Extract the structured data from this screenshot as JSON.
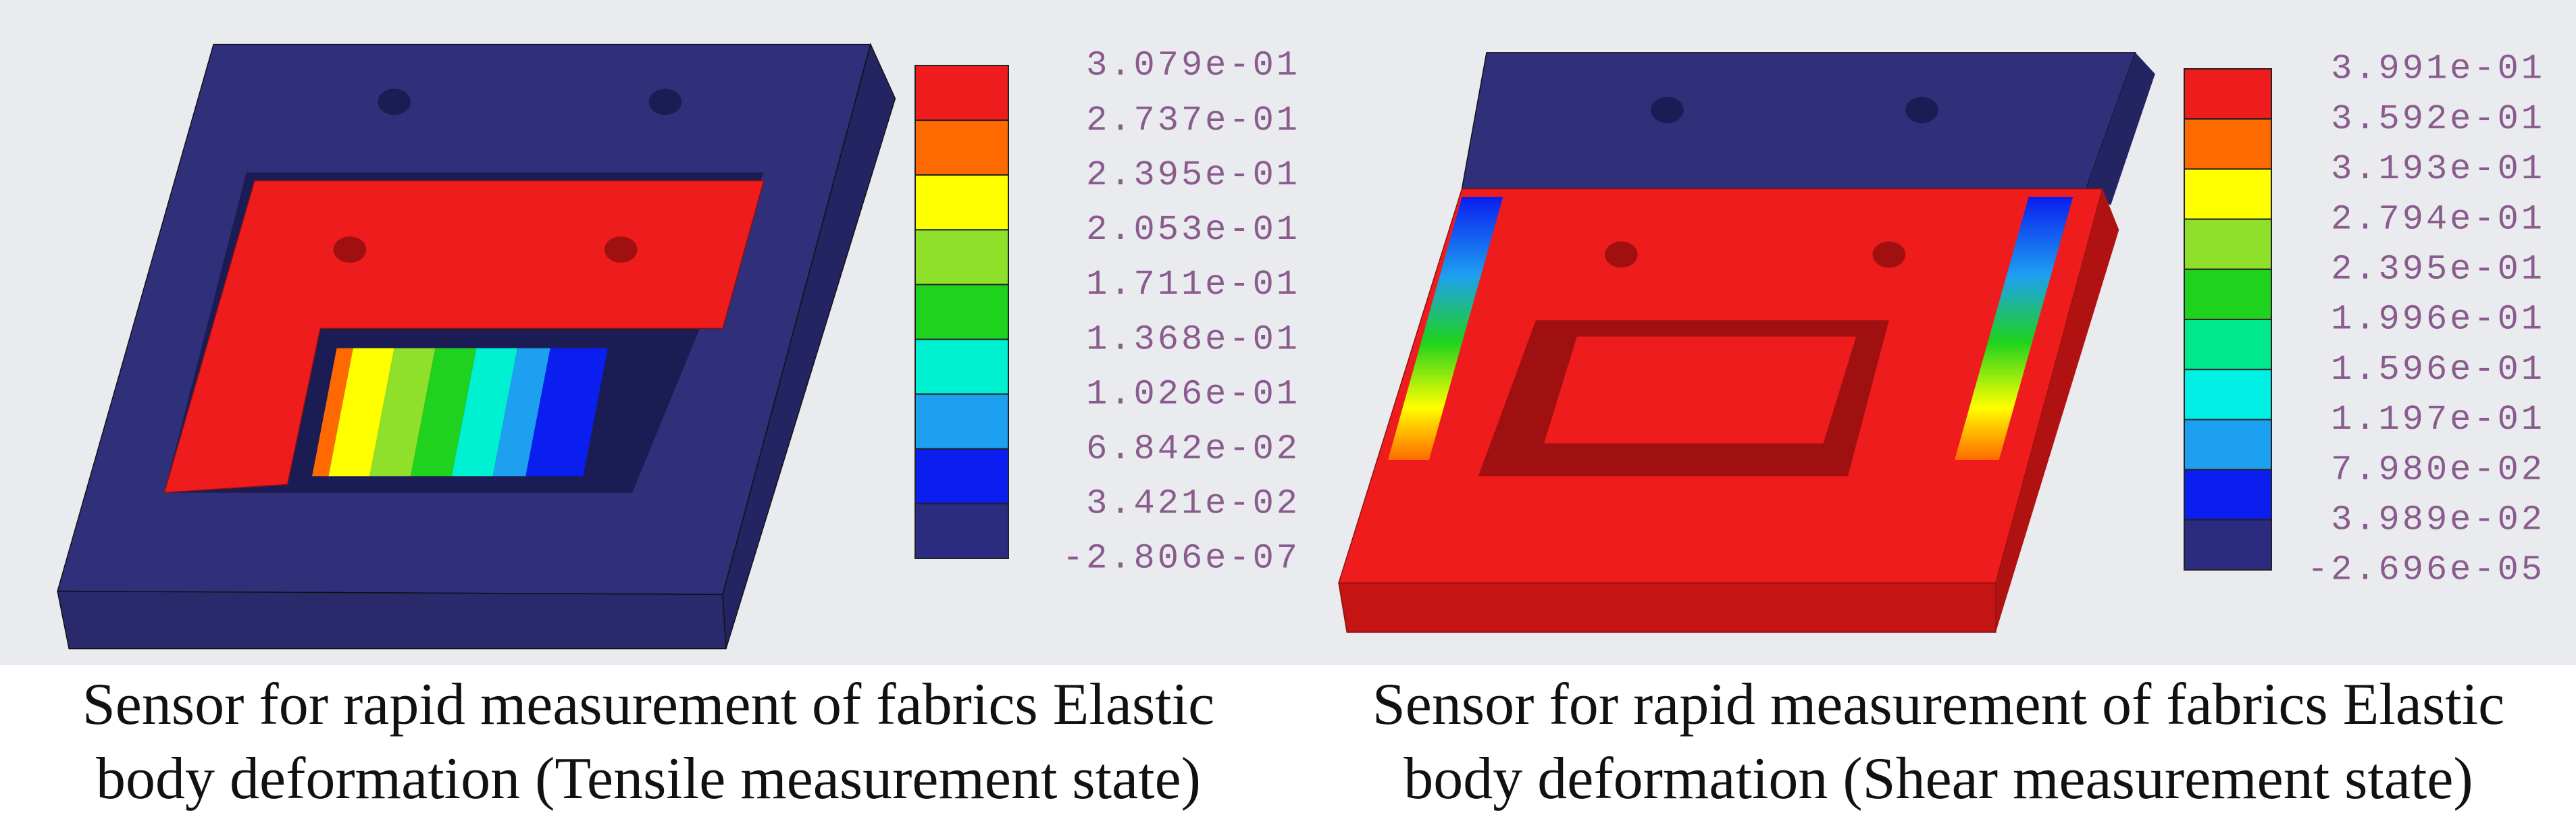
{
  "panels": [
    {
      "caption": [
        "Sensor for rapid measurement of fabrics Elastic",
        "body deformation (Tensile measurement state)"
      ],
      "legend": {
        "labels": [
          "3.079e-01",
          "2.737e-01",
          "2.395e-01",
          "2.053e-01",
          "1.711e-01",
          "1.368e-01",
          "1.026e-01",
          "6.842e-02",
          "3.421e-02",
          "-2.806e-07"
        ],
        "colors": [
          "#ee1c1c",
          "#ff6a00",
          "#ffff00",
          "#8ee02a",
          "#1ed21e",
          "#00f0d2",
          "#1ea0f0",
          "#0a1ef0",
          "#2b2b80"
        ]
      }
    },
    {
      "caption": [
        "Sensor for rapid measurement of fabrics Elastic",
        "body deformation (Shear measurement state)"
      ],
      "legend": {
        "labels": [
          "3.991e-01",
          "3.592e-01",
          "3.193e-01",
          "2.794e-01",
          "2.395e-01",
          "1.996e-01",
          "1.596e-01",
          "1.197e-01",
          "7.980e-02",
          "3.989e-02",
          "-2.696e-05"
        ],
        "colors": [
          "#ee1c1c",
          "#ff6a00",
          "#ffff00",
          "#8ee02a",
          "#1ed21e",
          "#00e88c",
          "#00f0e6",
          "#1ea0f0",
          "#0a1ef0",
          "#2b2b80"
        ]
      }
    }
  ]
}
